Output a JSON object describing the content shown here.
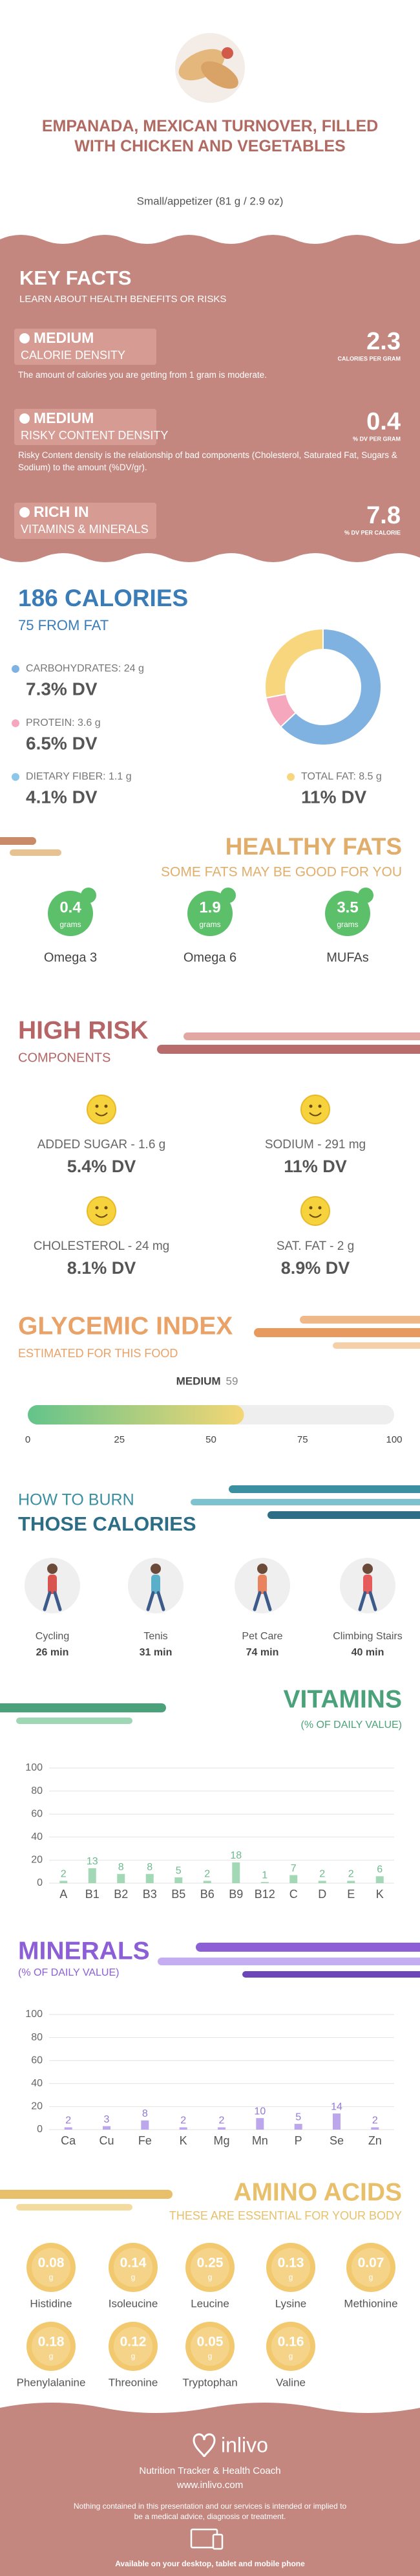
{
  "header": {
    "title": "EMPANADA, MEXICAN TURNOVER, FILLED WITH CHICKEN AND VEGETABLES",
    "serving": "Small/appetizer (81 g / 2.9 oz)"
  },
  "key_facts": {
    "title": "KEY FACTS",
    "subtitle": "LEARN ABOUT HEALTH BENEFITS OR RISKS",
    "facts": [
      {
        "level": "MEDIUM",
        "name": "CALORIE DENSITY",
        "value": 2.3,
        "unit": "CALORIES PER GRAM",
        "description": "The amount of calories you are getting from 1 gram is moderate."
      },
      {
        "level": "MEDIUM",
        "name": "RISKY CONTENT DENSITY",
        "value": 0.4,
        "unit": "% DV PER GRAM",
        "description": "Risky Content density is the relationship of bad components (Cholesterol, Saturated Fat, Sugars & Sodium) to the amount (%DV/gr)."
      },
      {
        "level": "RICH IN",
        "name": "VITAMINS & MINERALS",
        "value": 7.8,
        "unit": "% DV PER CALORIE"
      }
    ]
  },
  "calories": {
    "title": "186 CALORIES",
    "subtitle": "75 FROM FAT",
    "nutrients": [
      {
        "label": "CARBOHYDRATES: 24 g",
        "dv": "7.3% DV",
        "color": "#7fb2e0",
        "share": 63
      },
      {
        "label": "PROTEIN: 3.6 g",
        "dv": "6.5% DV",
        "color": "#f4a7bd",
        "share": 9
      },
      {
        "label": "DIETARY FIBER: 1.1 g",
        "dv": "4.1% DV",
        "color": "#8cc6e8"
      },
      {
        "label": "TOTAL FAT: 8.5 g",
        "dv": "11% DV",
        "color": "#f7d67e",
        "share": 28
      }
    ]
  },
  "healthy_fats": {
    "title": "HEALTHY FATS",
    "subtitle": "SOME FATS MAY BE GOOD FOR YOU",
    "unit": "grams",
    "items": [
      {
        "value": 0.4,
        "name": "Omega 3"
      },
      {
        "value": 1.9,
        "name": "Omega 6"
      },
      {
        "value": 3.5,
        "name": "MUFAs"
      }
    ]
  },
  "high_risk": {
    "title": "HIGH RISK",
    "subtitle": "COMPONENTS",
    "items": [
      {
        "label": "ADDED SUGAR - 1.6 g",
        "dv": "5.4% DV"
      },
      {
        "label": "SODIUM - 291 mg",
        "dv": "11% DV"
      },
      {
        "label": "CHOLESTEROL - 24 mg",
        "dv": "8.1% DV"
      },
      {
        "label": "SAT. FAT - 2 g",
        "dv": "8.9% DV"
      }
    ]
  },
  "glycemic": {
    "title": "GLYCEMIC INDEX",
    "subtitle": "ESTIMATED FOR THIS FOOD",
    "level": "MEDIUM",
    "value": 59,
    "xlim": [
      0,
      100
    ],
    "xticks": [
      0,
      25,
      50,
      75,
      100
    ]
  },
  "burn": {
    "title": "HOW TO BURN",
    "subtitle": "THOSE CALORIES",
    "activities": [
      {
        "name": "Cycling",
        "time": "26 min"
      },
      {
        "name": "Tenis",
        "time": "31 min"
      },
      {
        "name": "Pet Care",
        "time": "74 min"
      },
      {
        "name": "Climbing Stairs",
        "time": "40 min"
      }
    ]
  },
  "vitamins": {
    "type": "bar",
    "title": "VITAMINS",
    "subtitle": "(% OF DAILY VALUE)",
    "categories": [
      "A",
      "B1",
      "B2",
      "B3",
      "B5",
      "B6",
      "B9",
      "B12",
      "C",
      "D",
      "E",
      "K"
    ],
    "values": [
      2,
      13,
      8,
      8,
      5,
      2,
      18,
      1,
      7,
      2,
      2,
      6
    ],
    "color": "#a3d8b6",
    "label_color": "#6dbb8d",
    "ylim": [
      0,
      100
    ],
    "yticks": [
      0,
      20,
      40,
      60,
      80,
      100
    ],
    "grid": true
  },
  "minerals": {
    "type": "bar",
    "title": "MINERALS",
    "subtitle": "(% OF DAILY VALUE)",
    "categories": [
      "Ca",
      "Cu",
      "Fe",
      "K",
      "Mg",
      "Mn",
      "P",
      "Se",
      "Zn"
    ],
    "values": [
      2,
      3,
      8,
      2,
      2,
      10,
      5,
      14,
      2
    ],
    "color": "#bca6ec",
    "label_color": "#9479d6",
    "ylim": [
      0,
      100
    ],
    "yticks": [
      0,
      20,
      40,
      60,
      80,
      100
    ],
    "grid": true
  },
  "amino_acids": {
    "title": "AMINO ACIDS",
    "subtitle": "THESE ARE ESSENTIAL FOR YOUR BODY",
    "unit": "g",
    "items": [
      {
        "name": "Histidine",
        "value": 0.08
      },
      {
        "name": "Isoleucine",
        "value": 0.14
      },
      {
        "name": "Leucine",
        "value": 0.25
      },
      {
        "name": "Lysine",
        "value": 0.13
      },
      {
        "name": "Methionine",
        "value": 0.07
      },
      {
        "name": "Phenylalanine",
        "value": 0.18
      },
      {
        "name": "Threonine",
        "value": 0.12
      },
      {
        "name": "Tryptophan",
        "value": 0.05
      },
      {
        "name": "Valine",
        "value": 0.16
      }
    ]
  },
  "footer": {
    "brand": "inlivo",
    "tagline": "Nutrition Tracker & Health Coach",
    "url": "www.inlivo.com",
    "disclaimer": "Nothing contained in this presentation and our services is intended or implied to be a medical advice, diagnosis or treatment.",
    "availability": "Available on your desktop, tablet and mobile phone"
  }
}
